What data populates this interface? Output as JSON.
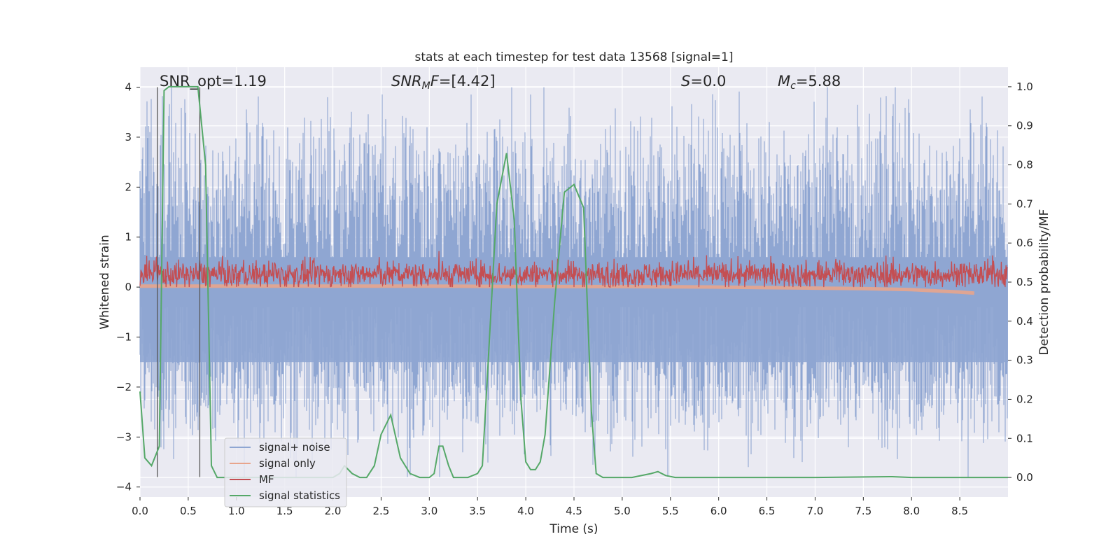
{
  "chart_data": {
    "type": "line",
    "title": "stats at each timestep for test data 13568 [signal=1]",
    "xlabel": "Time (s)",
    "ylabel": "Whitened strain",
    "ylabel_right": "Detection probability/MF",
    "xlim": [
      0.0,
      9.0
    ],
    "ylim": [
      -4.2,
      4.4
    ],
    "ylim_right": [
      -0.05,
      1.05
    ],
    "x_ticks": [
      0.0,
      0.5,
      1.0,
      1.5,
      2.0,
      2.5,
      3.0,
      3.5,
      4.0,
      4.5,
      5.0,
      5.5,
      6.0,
      6.5,
      7.0,
      7.5,
      8.0,
      8.5
    ],
    "x_tick_labels": [
      "0.0",
      "0.5",
      "1.0",
      "1.5",
      "2.0",
      "2.5",
      "3.0",
      "3.5",
      "4.0",
      "4.5",
      "5.0",
      "5.5",
      "6.0",
      "6.5",
      "7.0",
      "7.5",
      "8.0",
      "8.5"
    ],
    "y_ticks": [
      4,
      3,
      2,
      1,
      0,
      -1,
      -2,
      -3,
      -4
    ],
    "y_tick_labels": [
      "4",
      "3",
      "2",
      "1",
      "0",
      "−1",
      "−2",
      "−3",
      "−4"
    ],
    "y_right_ticks": [
      1.0,
      0.9,
      0.8,
      0.7,
      0.6,
      0.5,
      0.4,
      0.3,
      0.2,
      0.1,
      0.0
    ],
    "y_right_tick_labels": [
      "1.0",
      "0.9",
      "0.8",
      "0.7",
      "0.6",
      "0.5",
      "0.4",
      "0.3",
      "0.2",
      "0.1",
      "0.0"
    ],
    "grid": true,
    "legend_position": "lower-left",
    "annotations": {
      "snr_opt": "SNR_opt=1.19",
      "snr_mf_base": "SNR",
      "snr_mf_sub": "M",
      "snr_mf_rest": "F=[4.42]",
      "s_name": "S",
      "s_val": "=0.0",
      "mc_base": "M",
      "mc_sub": "c",
      "mc_val": "=5.88"
    },
    "vlines": [
      0.18,
      0.62
    ],
    "vline_range": [
      -3.8,
      4.0
    ],
    "series": [
      {
        "name": "signal+ noise",
        "color": "#8fa6d2",
        "noise": {
          "t_start": 0.0,
          "t_end": 9.0,
          "amplitude_min": -3.8,
          "amplitude_max": 4.0,
          "typical": [
            -2.0,
            2.3
          ]
        }
      },
      {
        "name": "signal only",
        "color": "#e8a58c",
        "x": [
          0.0,
          1.0,
          2.0,
          3.0,
          4.0,
          5.0,
          6.0,
          7.0,
          7.5,
          8.0,
          8.3,
          8.5,
          8.65
        ],
        "y": [
          0.02,
          0.02,
          0.02,
          0.02,
          0.01,
          0.01,
          0.0,
          -0.02,
          -0.03,
          -0.05,
          -0.08,
          -0.1,
          -0.12
        ]
      },
      {
        "name": "MF",
        "color": "#c44e52",
        "noise": {
          "t_start": 0.0,
          "t_end": 9.0,
          "base": 0.05,
          "typical_max": 0.7,
          "peak_max": 1.0
        }
      },
      {
        "name": "signal statistics",
        "color": "#55a868",
        "axis": "right",
        "x": [
          0.0,
          0.05,
          0.12,
          0.2,
          0.25,
          0.3,
          0.4,
          0.5,
          0.6,
          0.68,
          0.74,
          0.8,
          0.9,
          1.0,
          1.2,
          1.5,
          1.8,
          2.0,
          2.07,
          2.12,
          2.2,
          2.28,
          2.35,
          2.43,
          2.5,
          2.6,
          2.7,
          2.8,
          2.9,
          3.0,
          3.05,
          3.1,
          3.14,
          3.2,
          3.25,
          3.3,
          3.4,
          3.5,
          3.55,
          3.6,
          3.7,
          3.8,
          3.88,
          3.95,
          4.0,
          4.05,
          4.1,
          4.15,
          4.2,
          4.3,
          4.4,
          4.5,
          4.6,
          4.68,
          4.73,
          4.8,
          4.9,
          5.0,
          5.1,
          5.3,
          5.37,
          5.45,
          5.55,
          6.0,
          7.0,
          7.8,
          8.0,
          9.0
        ],
        "y": [
          0.22,
          0.05,
          0.03,
          0.08,
          0.99,
          1.0,
          1.0,
          1.0,
          1.0,
          0.8,
          0.03,
          0.0,
          0.0,
          0.0,
          0.0,
          0.0,
          0.0,
          0.0,
          0.01,
          0.03,
          0.01,
          0.0,
          0.0,
          0.03,
          0.11,
          0.16,
          0.05,
          0.01,
          0.0,
          0.0,
          0.01,
          0.08,
          0.08,
          0.03,
          0.0,
          0.0,
          0.0,
          0.01,
          0.03,
          0.25,
          0.7,
          0.83,
          0.66,
          0.2,
          0.04,
          0.02,
          0.02,
          0.04,
          0.11,
          0.45,
          0.73,
          0.75,
          0.69,
          0.17,
          0.01,
          0.0,
          0.0,
          0.0,
          0.0,
          0.01,
          0.015,
          0.005,
          0.0,
          0.0,
          0.0,
          0.002,
          0.0,
          0.0
        ]
      }
    ]
  }
}
